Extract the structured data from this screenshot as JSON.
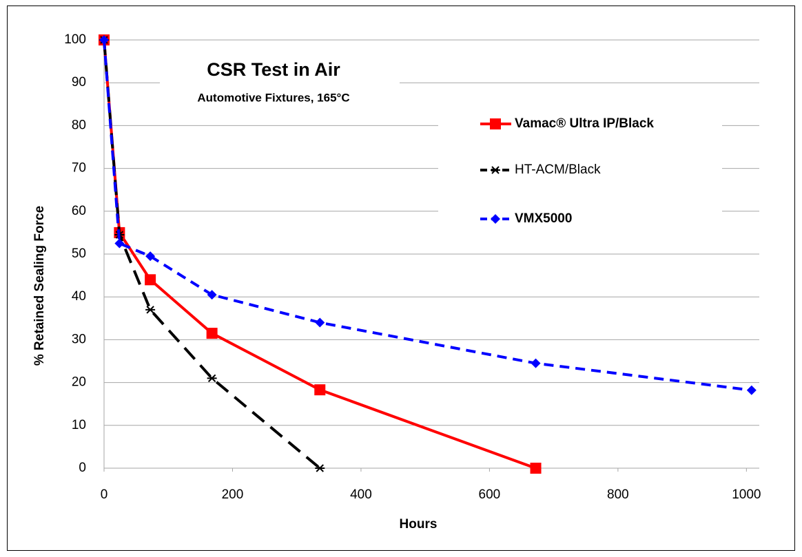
{
  "chart_data": {
    "type": "line",
    "title": "CSR Test in Air",
    "subtitle": "Automotive Fixtures, 165°C",
    "xlabel": "Hours",
    "ylabel": "% Retained Sealing Force",
    "xlim": [
      0,
      1020
    ],
    "ylim": [
      0,
      100
    ],
    "xticks": [
      0,
      200,
      400,
      600,
      800,
      1000
    ],
    "yticks": [
      0,
      10,
      20,
      30,
      40,
      50,
      60,
      70,
      80,
      90,
      100
    ],
    "grid": true,
    "series": [
      {
        "name": "Vamac® Ultra IP/Black",
        "color": "#ff0000",
        "marker": "square",
        "dash": "solid",
        "x": [
          0,
          24,
          72,
          168,
          336,
          672
        ],
        "values": [
          100,
          55,
          44,
          31.5,
          18.3,
          0
        ]
      },
      {
        "name": "HT-ACM/Black",
        "color": "#000000",
        "marker": "asterisk",
        "dash": "long",
        "x": [
          0,
          24,
          72,
          168,
          336
        ],
        "values": [
          100,
          54.5,
          37,
          21,
          0
        ]
      },
      {
        "name": "VMX5000",
        "color": "#0000ff",
        "marker": "diamond",
        "dash": "short",
        "x": [
          0,
          24,
          72,
          168,
          336,
          672,
          1008
        ],
        "values": [
          100,
          52.5,
          49.5,
          40.5,
          34,
          24.5,
          18.2
        ]
      }
    ]
  }
}
